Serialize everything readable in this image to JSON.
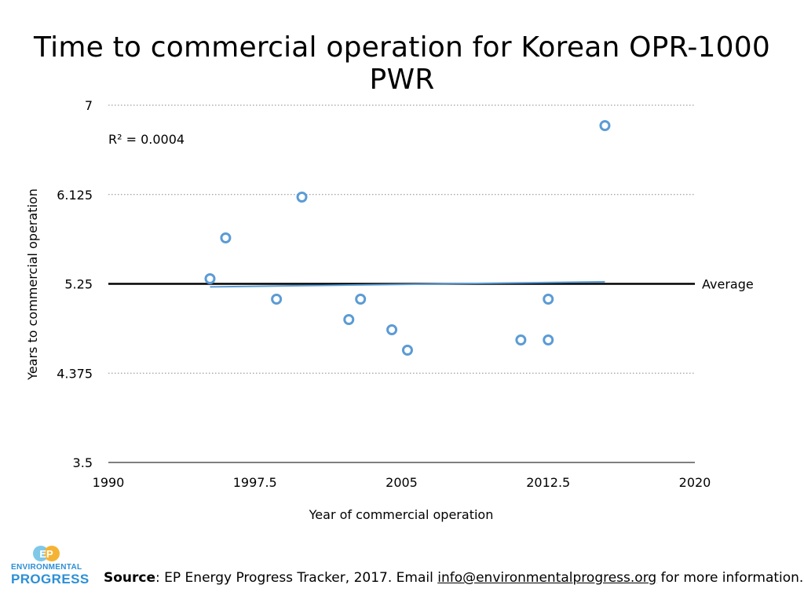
{
  "title": "Time to commercial operation for Korean OPR-1000 PWR",
  "chart_data": {
    "type": "scatter",
    "xlabel": "Year of commercial operation",
    "ylabel": "Years to commercial operation",
    "xlim": [
      1990,
      2020
    ],
    "ylim": [
      3.5,
      7
    ],
    "x_ticks": [
      "1990",
      "1997.5",
      "2005",
      "2012.5",
      "2020"
    ],
    "y_ticks": [
      "3.5",
      "4.375",
      "5.25",
      "6.125",
      "7"
    ],
    "grid": "horizontal dotted",
    "points": [
      {
        "x": 1995.2,
        "y": 5.3
      },
      {
        "x": 1996.0,
        "y": 5.7
      },
      {
        "x": 1998.6,
        "y": 5.1
      },
      {
        "x": 1999.9,
        "y": 6.1
      },
      {
        "x": 2002.3,
        "y": 4.9
      },
      {
        "x": 2002.9,
        "y": 5.1
      },
      {
        "x": 2004.5,
        "y": 4.8
      },
      {
        "x": 2005.3,
        "y": 4.6
      },
      {
        "x": 2011.1,
        "y": 4.7
      },
      {
        "x": 2012.5,
        "y": 4.7
      },
      {
        "x": 2012.5,
        "y": 5.1
      },
      {
        "x": 2015.4,
        "y": 6.8
      }
    ],
    "trendline": {
      "x": [
        1995.2,
        2015.4
      ],
      "y": [
        5.22,
        5.27
      ],
      "color": "#5b9bd5"
    },
    "r_squared_label": "R² = 0.0004",
    "average": {
      "value": 5.25,
      "label": "Average"
    },
    "marker_color": "#5b9bd5"
  },
  "source": {
    "label": "Source",
    "text": ": EP Energy Progress Tracker, 2017. Email ",
    "email": "info@environmentalprogress.org",
    "suffix": " for more information."
  },
  "logo": {
    "badge_text": "EP",
    "line1": "ENVIRONMENTAL",
    "line2": "PROGRESS",
    "colors": {
      "badge_left": "#7fc8e8",
      "badge_right": "#f5b335",
      "text": "#2c8fd6"
    }
  }
}
